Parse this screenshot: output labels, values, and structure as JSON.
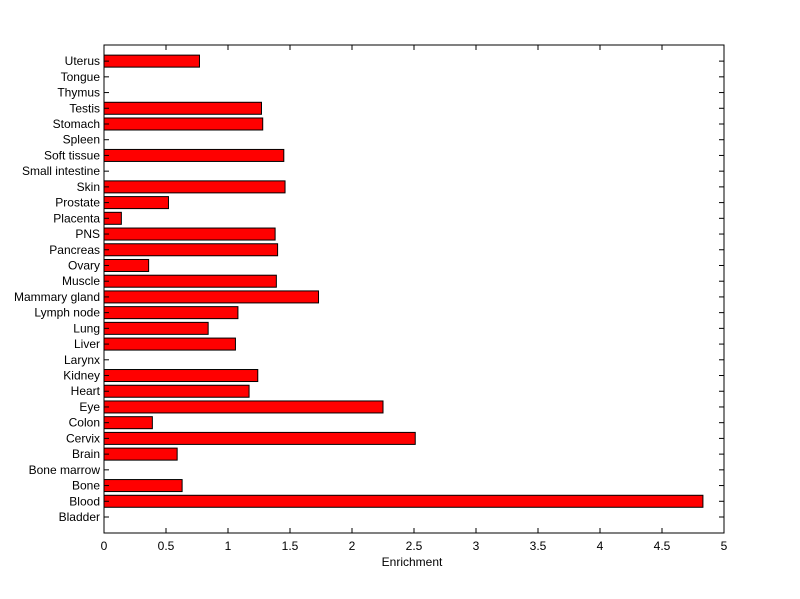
{
  "chart_data": {
    "type": "bar",
    "orientation": "horizontal",
    "title": "",
    "xlabel": "Enrichment",
    "ylabel": "",
    "xlim": [
      0,
      5
    ],
    "xticks": [
      0,
      0.5,
      1,
      1.5,
      2,
      2.5,
      3,
      3.5,
      4,
      4.5,
      5
    ],
    "xtick_labels": [
      "0",
      "0.5",
      "1",
      "1.5",
      "2",
      "2.5",
      "3",
      "3.5",
      "4",
      "4.5",
      "5"
    ],
    "grid": false,
    "bar_color": "#ff0000",
    "edge_color": "#000000",
    "categories": [
      "Bladder",
      "Blood",
      "Bone",
      "Bone marrow",
      "Brain",
      "Cervix",
      "Colon",
      "Eye",
      "Heart",
      "Kidney",
      "Larynx",
      "Liver",
      "Lung",
      "Lymph node",
      "Mammary gland",
      "Muscle",
      "Ovary",
      "Pancreas",
      "PNS",
      "Placenta",
      "Prostate",
      "Skin",
      "Small intestine",
      "Soft tissue",
      "Spleen",
      "Stomach",
      "Testis",
      "Thymus",
      "Tongue",
      "Uterus"
    ],
    "values": [
      0,
      4.83,
      0.63,
      0,
      0.59,
      2.51,
      0.39,
      2.25,
      1.17,
      1.24,
      0,
      1.06,
      0.84,
      1.08,
      1.73,
      1.39,
      0.36,
      1.4,
      1.38,
      0.14,
      0.52,
      1.46,
      0,
      1.45,
      0,
      1.28,
      1.27,
      0,
      0,
      0.77
    ]
  }
}
